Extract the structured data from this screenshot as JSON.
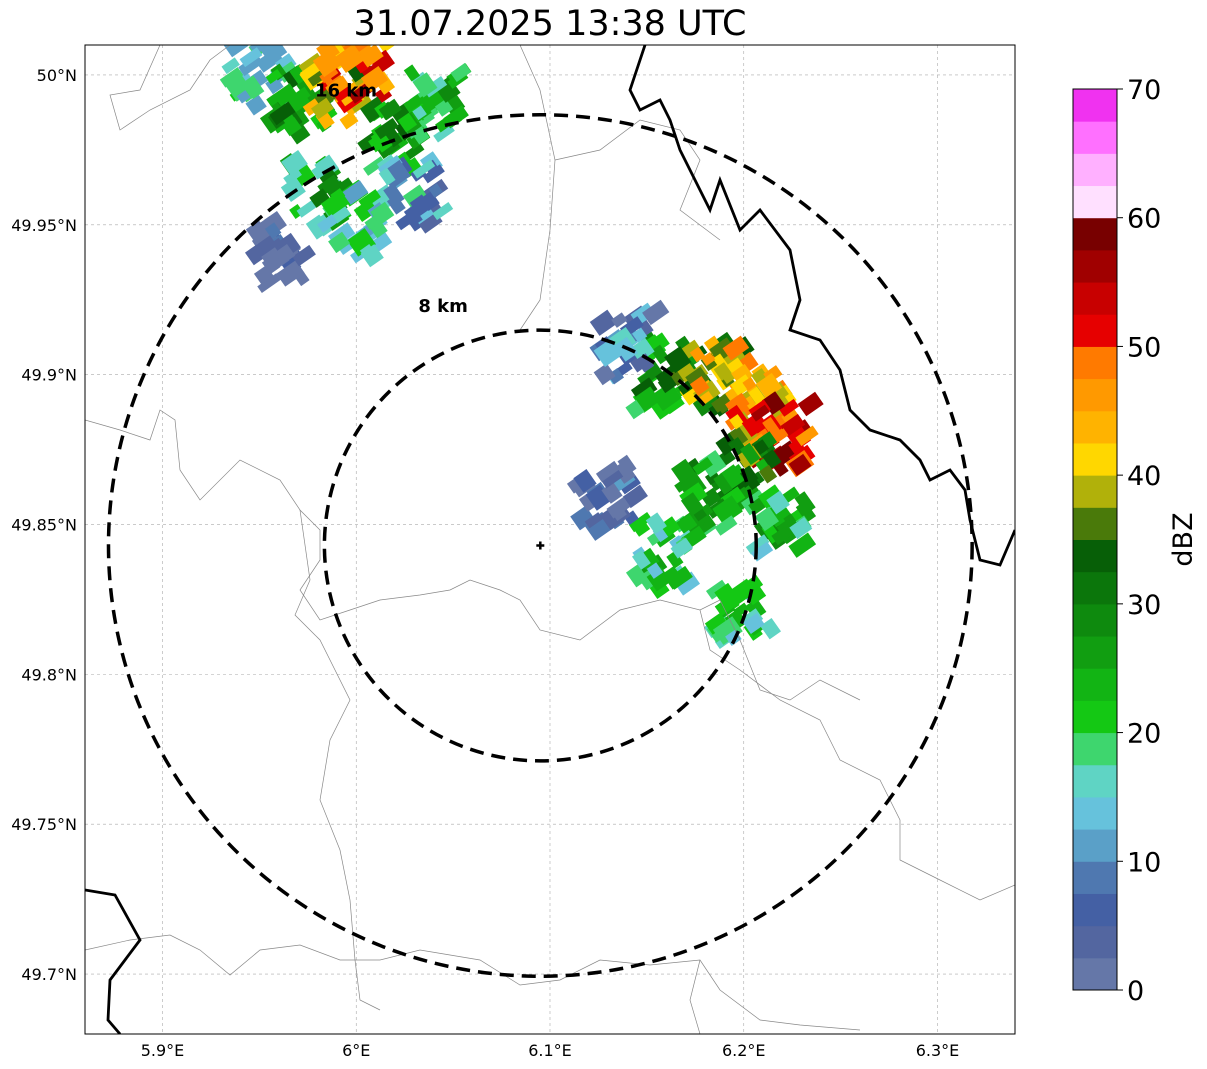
{
  "title": "31.07.2025 13:38 UTC",
  "map": {
    "lon_range": [
      5.86,
      6.34
    ],
    "lat_range": [
      49.68,
      50.01
    ],
    "x_ticks": [
      {
        "value": 5.9,
        "label": "5.9°E"
      },
      {
        "value": 6.0,
        "label": "6°E"
      },
      {
        "value": 6.1,
        "label": "6.1°E"
      },
      {
        "value": 6.2,
        "label": "6.2°E"
      },
      {
        "value": 6.3,
        "label": "6.3°E"
      }
    ],
    "y_ticks": [
      {
        "value": 50.0,
        "label": "50°N"
      },
      {
        "value": 49.95,
        "label": "49.95°N"
      },
      {
        "value": 49.9,
        "label": "49.9°N"
      },
      {
        "value": 49.85,
        "label": "49.85°N"
      },
      {
        "value": 49.8,
        "label": "49.8°N"
      },
      {
        "value": 49.75,
        "label": "49.75°N"
      },
      {
        "value": 49.7,
        "label": "49.7°N"
      }
    ],
    "radar_site": {
      "lon": 6.095,
      "lat": 49.843
    },
    "rings": [
      {
        "label": "8 km",
        "radius_km": 8
      },
      {
        "label": "16 km",
        "radius_km": 16
      }
    ],
    "grid": true
  },
  "colorbar": {
    "label": "dBZ",
    "min": 0,
    "max": 70,
    "ticks": [
      "0",
      "10",
      "20",
      "30",
      "40",
      "50",
      "60",
      "70"
    ],
    "colors": [
      "#6577a8",
      "#5366a0",
      "#4460a4",
      "#4f78b0",
      "#5aa0c8",
      "#66c2dc",
      "#5fd4c4",
      "#3ed66e",
      "#14c814",
      "#12b414",
      "#119e11",
      "#0e8a0e",
      "#0b760b",
      "#075f07",
      "#4a7a0a",
      "#b1b10a",
      "#ffd700",
      "#ffb300",
      "#ff9900",
      "#ff7a00",
      "#e60000",
      "#c80000",
      "#a00000",
      "#780000",
      "#ffe0ff",
      "#ffb0ff",
      "#ff70ff",
      "#f032f0"
    ]
  },
  "echoes": [
    {
      "name": "north-cell",
      "cells": [
        {
          "lon": 5.95,
          "lat": 50.0,
          "dbz": 18
        },
        {
          "lon": 5.97,
          "lat": 49.99,
          "dbz": 30
        },
        {
          "lon": 5.99,
          "lat": 49.995,
          "dbz": 45
        },
        {
          "lon": 6.0,
          "lat": 50.0,
          "dbz": 52
        },
        {
          "lon": 6.02,
          "lat": 49.98,
          "dbz": 30
        },
        {
          "lon": 6.04,
          "lat": 49.99,
          "dbz": 24
        },
        {
          "lon": 5.98,
          "lat": 49.96,
          "dbz": 26
        },
        {
          "lon": 6.0,
          "lat": 49.95,
          "dbz": 20
        },
        {
          "lon": 6.03,
          "lat": 49.96,
          "dbz": 14
        },
        {
          "lon": 5.96,
          "lat": 49.94,
          "dbz": 5
        }
      ]
    },
    {
      "name": "central-cell",
      "cells": [
        {
          "lon": 6.16,
          "lat": 49.9,
          "dbz": 30
        },
        {
          "lon": 6.18,
          "lat": 49.9,
          "dbz": 38
        },
        {
          "lon": 6.19,
          "lat": 49.9,
          "dbz": 45
        },
        {
          "lon": 6.21,
          "lat": 49.89,
          "dbz": 47
        },
        {
          "lon": 6.22,
          "lat": 49.88,
          "dbz": 55
        },
        {
          "lon": 6.2,
          "lat": 49.87,
          "dbz": 33
        },
        {
          "lon": 6.18,
          "lat": 49.86,
          "dbz": 28
        },
        {
          "lon": 6.22,
          "lat": 49.85,
          "dbz": 24
        },
        {
          "lon": 6.16,
          "lat": 49.84,
          "dbz": 22
        },
        {
          "lon": 6.2,
          "lat": 49.82,
          "dbz": 20
        },
        {
          "lon": 6.13,
          "lat": 49.86,
          "dbz": 6
        },
        {
          "lon": 6.14,
          "lat": 49.91,
          "dbz": 12
        }
      ]
    }
  ]
}
